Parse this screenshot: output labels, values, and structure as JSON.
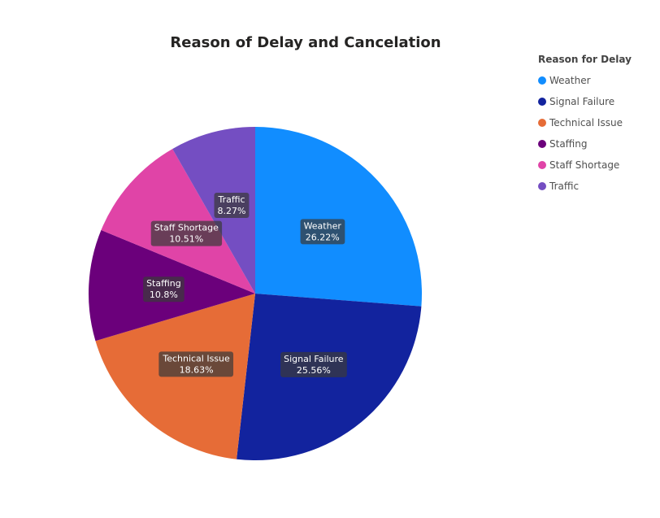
{
  "chart_data": {
    "type": "pie",
    "title": "Reason of Delay and Cancelation",
    "legend_title": "Reason for Delay",
    "legend_position": "top-right",
    "start_angle_deg": 0,
    "direction": "clockwise",
    "slices": [
      {
        "label": "Weather",
        "value": 26.22,
        "pct_label": "26.22%",
        "color": "#118DFF"
      },
      {
        "label": "Signal Failure",
        "value": 25.56,
        "pct_label": "25.56%",
        "color": "#12239E"
      },
      {
        "label": "Technical Issue",
        "value": 18.63,
        "pct_label": "18.63%",
        "color": "#E66C37"
      },
      {
        "label": "Staffing",
        "value": 10.8,
        "pct_label": "10.8%",
        "color": "#6B007B"
      },
      {
        "label": "Staff Shortage",
        "value": 10.51,
        "pct_label": "10.51%",
        "color": "#E044A7"
      },
      {
        "label": "Traffic",
        "value": 8.27,
        "pct_label": "8.27%",
        "color": "#744EC2"
      }
    ]
  }
}
